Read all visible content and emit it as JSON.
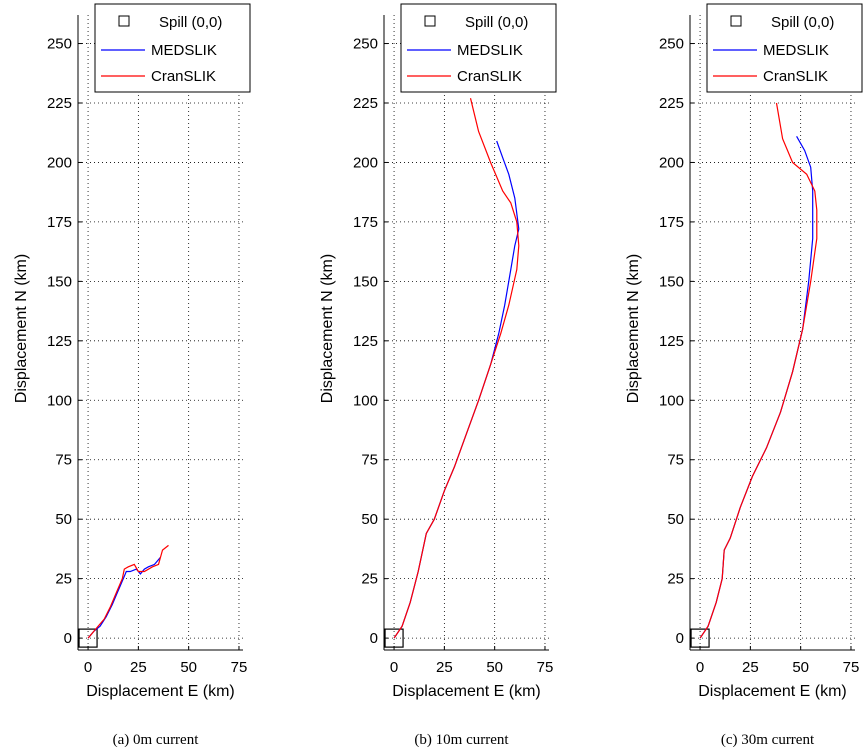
{
  "chart_data": [
    {
      "type": "line",
      "caption": "(a) 0m current",
      "xlabel": "Displacement E (km)",
      "ylabel": "Displacement N (km)",
      "xlim": [
        -5,
        77
      ],
      "ylim": [
        -5,
        262
      ],
      "xticks": [
        0,
        25,
        50,
        75
      ],
      "yticks": [
        0,
        25,
        50,
        75,
        100,
        125,
        150,
        175,
        200,
        225,
        250
      ],
      "grid": true,
      "legend_position": "top-right",
      "series": [
        {
          "name": "Spill (0,0)",
          "marker": "square",
          "color": "#000000",
          "x": [
            0
          ],
          "y": [
            0
          ]
        },
        {
          "name": "MEDSLIK",
          "color": "#0000ff",
          "x": [
            0,
            3,
            6,
            9,
            12,
            14,
            16,
            18,
            19,
            21,
            24,
            26,
            28,
            30,
            33,
            36
          ],
          "y": [
            0,
            3,
            5,
            9,
            14,
            18,
            22,
            26,
            28,
            28,
            29,
            27,
            29,
            30,
            31,
            34
          ]
        },
        {
          "name": "CranSLIK",
          "color": "#ff0000",
          "x": [
            0,
            3,
            5,
            8,
            11,
            13,
            15,
            17,
            18,
            20,
            23,
            25,
            28,
            32,
            35,
            37,
            40
          ],
          "y": [
            0,
            3,
            5,
            8,
            13,
            17,
            21,
            25,
            29,
            30,
            31,
            28,
            28,
            30,
            31,
            37,
            39
          ]
        }
      ]
    },
    {
      "type": "line",
      "caption": "(b) 10m current",
      "xlabel": "Displacement E (km)",
      "ylabel": "Displacement N (km)",
      "xlim": [
        -5,
        77
      ],
      "ylim": [
        -5,
        262
      ],
      "xticks": [
        0,
        25,
        50,
        75
      ],
      "yticks": [
        0,
        25,
        50,
        75,
        100,
        125,
        150,
        175,
        200,
        225,
        250
      ],
      "grid": true,
      "legend_position": "top-right",
      "series": [
        {
          "name": "Spill (0,0)",
          "marker": "square",
          "color": "#000000",
          "x": [
            0
          ],
          "y": [
            0
          ]
        },
        {
          "name": "MEDSLIK",
          "color": "#0000ff",
          "x": [
            0,
            4,
            8,
            12,
            16,
            20,
            25,
            30,
            36,
            42,
            48,
            52,
            55,
            58,
            60,
            62,
            60,
            57,
            54,
            51
          ],
          "y": [
            0,
            5,
            15,
            28,
            44,
            50,
            62,
            72,
            86,
            100,
            115,
            128,
            140,
            155,
            165,
            172,
            185,
            195,
            202,
            209
          ]
        },
        {
          "name": "CranSLIK",
          "color": "#ff0000",
          "x": [
            0,
            4,
            8,
            12,
            16,
            20,
            25,
            30,
            36,
            42,
            48,
            53,
            57,
            61,
            62,
            61,
            58,
            54,
            48,
            42,
            38
          ],
          "y": [
            0,
            5,
            15,
            28,
            44,
            50,
            62,
            72,
            86,
            100,
            115,
            128,
            140,
            155,
            165,
            175,
            183,
            188,
            200,
            213,
            227
          ]
        }
      ]
    },
    {
      "type": "line",
      "caption": "(c) 30m current",
      "xlabel": "Displacement E (km)",
      "ylabel": "Displacement N (km)",
      "xlim": [
        -5,
        77
      ],
      "ylim": [
        -5,
        262
      ],
      "xticks": [
        0,
        25,
        50,
        75
      ],
      "yticks": [
        0,
        25,
        50,
        75,
        100,
        125,
        150,
        175,
        200,
        225,
        250
      ],
      "grid": true,
      "legend_position": "top-right",
      "series": [
        {
          "name": "Spill (0,0)",
          "marker": "square",
          "color": "#000000",
          "x": [
            0
          ],
          "y": [
            0
          ]
        },
        {
          "name": "MEDSLIK",
          "color": "#0000ff",
          "x": [
            0,
            4,
            8,
            11,
            12,
            15,
            20,
            26,
            33,
            40,
            46,
            51,
            54,
            56,
            56,
            55,
            52,
            48
          ],
          "y": [
            0,
            5,
            15,
            25,
            37,
            42,
            55,
            68,
            80,
            95,
            112,
            130,
            150,
            168,
            188,
            198,
            205,
            211
          ]
        },
        {
          "name": "CranSLIK",
          "color": "#ff0000",
          "x": [
            0,
            4,
            8,
            11,
            12,
            15,
            20,
            26,
            33,
            40,
            46,
            51,
            55,
            58,
            58,
            57,
            53,
            46,
            41,
            38
          ],
          "y": [
            0,
            5,
            15,
            25,
            37,
            42,
            55,
            68,
            80,
            95,
            112,
            130,
            150,
            168,
            180,
            188,
            195,
            200,
            210,
            225
          ]
        }
      ]
    }
  ]
}
